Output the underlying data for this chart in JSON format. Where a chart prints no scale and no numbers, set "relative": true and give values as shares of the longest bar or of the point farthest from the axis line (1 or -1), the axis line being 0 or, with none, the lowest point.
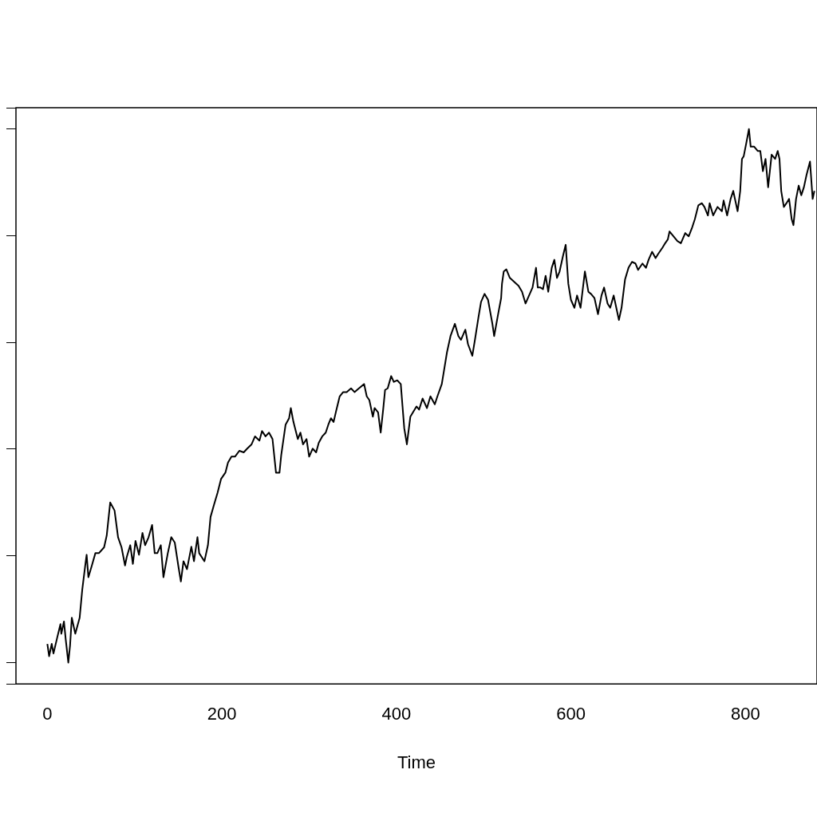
{
  "chart_data": {
    "type": "line",
    "xlabel": "Time",
    "relative": true,
    "xlim": [
      -36,
      882
    ],
    "xticks": [
      0,
      200,
      400,
      600,
      800
    ],
    "color": "#000000",
    "tick_labels": "x",
    "grid": false,
    "legend": false,
    "marker": "none",
    "x": [
      0,
      2,
      5,
      7,
      11,
      15,
      16,
      19,
      21,
      24,
      26,
      28,
      32,
      37,
      40,
      44,
      45,
      47,
      51,
      55,
      59,
      65,
      68,
      72,
      77,
      81,
      85,
      89,
      91,
      95,
      98,
      101,
      105,
      109,
      112,
      116,
      120,
      123,
      126,
      130,
      133,
      138,
      142,
      146,
      150,
      153,
      156,
      160,
      165,
      168,
      172,
      174,
      180,
      184,
      187,
      191,
      195,
      199,
      204,
      207,
      211,
      215,
      220,
      225,
      229,
      234,
      238,
      243,
      246,
      250,
      254,
      258,
      262,
      266,
      268,
      273,
      277,
      279,
      282,
      287,
      290,
      293,
      297,
      300,
      304,
      308,
      311,
      315,
      319,
      322,
      325,
      328,
      331,
      335,
      339,
      343,
      348,
      352,
      357,
      363,
      366,
      369,
      373,
      375,
      379,
      382,
      385,
      387,
      390,
      394,
      397,
      401,
      405,
      409,
      412,
      416,
      419,
      423,
      426,
      430,
      435,
      439,
      444,
      447,
      452,
      455,
      458,
      462,
      467,
      471,
      474,
      479,
      482,
      487,
      490,
      494,
      497,
      501,
      505,
      510,
      512,
      517,
      520,
      521,
      523,
      526,
      530,
      534,
      540,
      544,
      548,
      552,
      556,
      560,
      562,
      565,
      568,
      571,
      574,
      578,
      581,
      584,
      587,
      591,
      594,
      597,
      600,
      604,
      607,
      611,
      616,
      620,
      623,
      627,
      631,
      635,
      638,
      642,
      645,
      649,
      652,
      655,
      658,
      662,
      666,
      670,
      674,
      677,
      682,
      686,
      689,
      693,
      697,
      700,
      705,
      708,
      711,
      713,
      719,
      722,
      726,
      731,
      735,
      739,
      742,
      746,
      750,
      753,
      757,
      759,
      763,
      768,
      773,
      775,
      779,
      783,
      786,
      791,
      794,
      796,
      798,
      801,
      804,
      806,
      810,
      814,
      817,
      820,
      823,
      826,
      830,
      834,
      837,
      839,
      841,
      844,
      847,
      850,
      853,
      855,
      858,
      861,
      864,
      867,
      870,
      874,
      877,
      879
    ],
    "values": [
      0.035,
      0.012,
      0.035,
      0.017,
      0.045,
      0.072,
      0.054,
      0.077,
      0.044,
      0,
      0.032,
      0.084,
      0.054,
      0.084,
      0.137,
      0.19,
      0.202,
      0.16,
      0.182,
      0.205,
      0.205,
      0.216,
      0.238,
      0.3,
      0.285,
      0.235,
      0.216,
      0.182,
      0.198,
      0.22,
      0.185,
      0.228,
      0.202,
      0.243,
      0.22,
      0.235,
      0.258,
      0.205,
      0.205,
      0.22,
      0.16,
      0.205,
      0.235,
      0.225,
      0.182,
      0.152,
      0.19,
      0.175,
      0.217,
      0.19,
      0.235,
      0.205,
      0.19,
      0.22,
      0.273,
      0.296,
      0.318,
      0.344,
      0.356,
      0.375,
      0.386,
      0.386,
      0.397,
      0.394,
      0.401,
      0.409,
      0.424,
      0.416,
      0.434,
      0.424,
      0.431,
      0.419,
      0.356,
      0.356,
      0.389,
      0.446,
      0.458,
      0.477,
      0.451,
      0.419,
      0.431,
      0.409,
      0.419,
      0.386,
      0.401,
      0.394,
      0.412,
      0.424,
      0.431,
      0.446,
      0.458,
      0.451,
      0.472,
      0.499,
      0.507,
      0.507,
      0.514,
      0.507,
      0.514,
      0.522,
      0.499,
      0.492,
      0.461,
      0.477,
      0.469,
      0.431,
      0.477,
      0.511,
      0.514,
      0.537,
      0.526,
      0.529,
      0.522,
      0.439,
      0.409,
      0.461,
      0.469,
      0.48,
      0.474,
      0.495,
      0.477,
      0.499,
      0.484,
      0.499,
      0.522,
      0.552,
      0.582,
      0.612,
      0.635,
      0.612,
      0.605,
      0.624,
      0.597,
      0.575,
      0.605,
      0.647,
      0.676,
      0.691,
      0.68,
      0.635,
      0.612,
      0.657,
      0.683,
      0.71,
      0.733,
      0.737,
      0.721,
      0.715,
      0.706,
      0.695,
      0.673,
      0.688,
      0.703,
      0.74,
      0.703,
      0.703,
      0.7,
      0.725,
      0.695,
      0.74,
      0.755,
      0.721,
      0.733,
      0.763,
      0.783,
      0.71,
      0.68,
      0.665,
      0.688,
      0.665,
      0.733,
      0.695,
      0.691,
      0.683,
      0.653,
      0.688,
      0.703,
      0.673,
      0.665,
      0.688,
      0.665,
      0.642,
      0.665,
      0.718,
      0.74,
      0.751,
      0.748,
      0.736,
      0.748,
      0.74,
      0.755,
      0.77,
      0.758,
      0.766,
      0.778,
      0.786,
      0.793,
      0.808,
      0.796,
      0.79,
      0.786,
      0.805,
      0.799,
      0.816,
      0.831,
      0.857,
      0.861,
      0.854,
      0.838,
      0.861,
      0.838,
      0.854,
      0.846,
      0.866,
      0.838,
      0.869,
      0.884,
      0.846,
      0.884,
      0.944,
      0.949,
      0.974,
      1,
      0.967,
      0.967,
      0.959,
      0.959,
      0.921,
      0.944,
      0.891,
      0.952,
      0.944,
      0.959,
      0.944,
      0.884,
      0.854,
      0.861,
      0.869,
      0.831,
      0.82,
      0.869,
      0.894,
      0.876,
      0.891,
      0.914,
      0.939,
      0.869,
      0.884
    ]
  }
}
